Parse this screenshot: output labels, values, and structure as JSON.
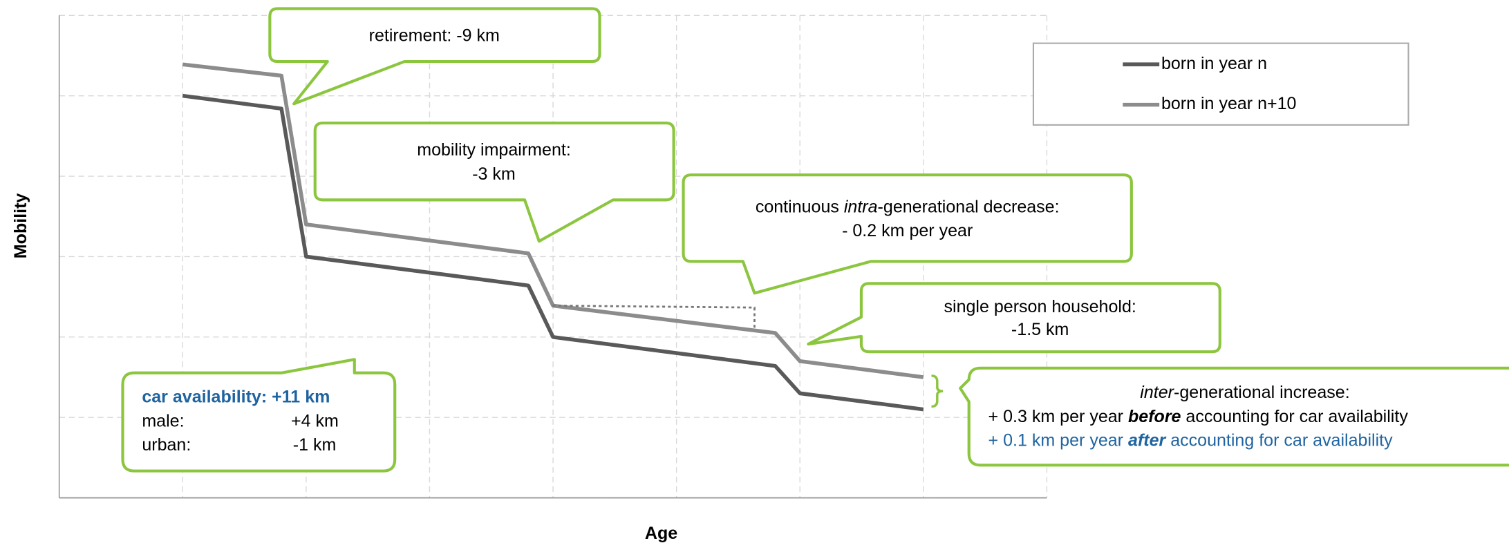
{
  "chart_data": {
    "type": "line",
    "x_label": "Age",
    "y_label": "Mobility",
    "xlim": [
      0,
      8
    ],
    "ylim": [
      0,
      6
    ],
    "xticks": [
      0,
      1,
      2,
      3,
      4,
      5,
      6,
      7,
      8
    ],
    "yticks": [
      0,
      1,
      2,
      3,
      4,
      5,
      6
    ],
    "grid": true,
    "legend": "upper right",
    "x": [
      1.0,
      1.8,
      2.0,
      3.8,
      4.0,
      5.8,
      6.0,
      7.0
    ],
    "series": [
      {
        "name": "born in year n",
        "color": "#595959",
        "values": [
          5.0,
          4.84,
          3.0,
          2.64,
          2.0,
          1.64,
          1.3,
          1.1
        ]
      },
      {
        "name": "born in year n+10",
        "color": "#8c8c8c",
        "values": [
          5.39,
          5.25,
          3.4,
          3.04,
          2.39,
          2.05,
          1.7,
          1.5
        ]
      }
    ],
    "annotations": [
      {
        "text": "retirement: -9 km"
      },
      {
        "lines": [
          "mobility impairment:",
          "-3 km"
        ]
      },
      {
        "lines": [
          [
            "continuous ",
            "intra",
            "-generational decrease:"
          ],
          "- 0.2 km per year"
        ]
      },
      {
        "lines": [
          "single person household:",
          "-1.5 km"
        ]
      },
      {
        "title": "car availability: +11 km",
        "rows": [
          [
            "male:",
            "+4 km"
          ],
          [
            "urban:",
            "-1 km"
          ]
        ]
      },
      {
        "lines": [
          [
            "inter",
            "-generational increase:"
          ],
          [
            "+ 0.3 km per year ",
            "before",
            " accounting for car availability"
          ],
          [
            "+ 0.1 km per year ",
            "after",
            " accounting for car availability"
          ]
        ]
      }
    ]
  }
}
